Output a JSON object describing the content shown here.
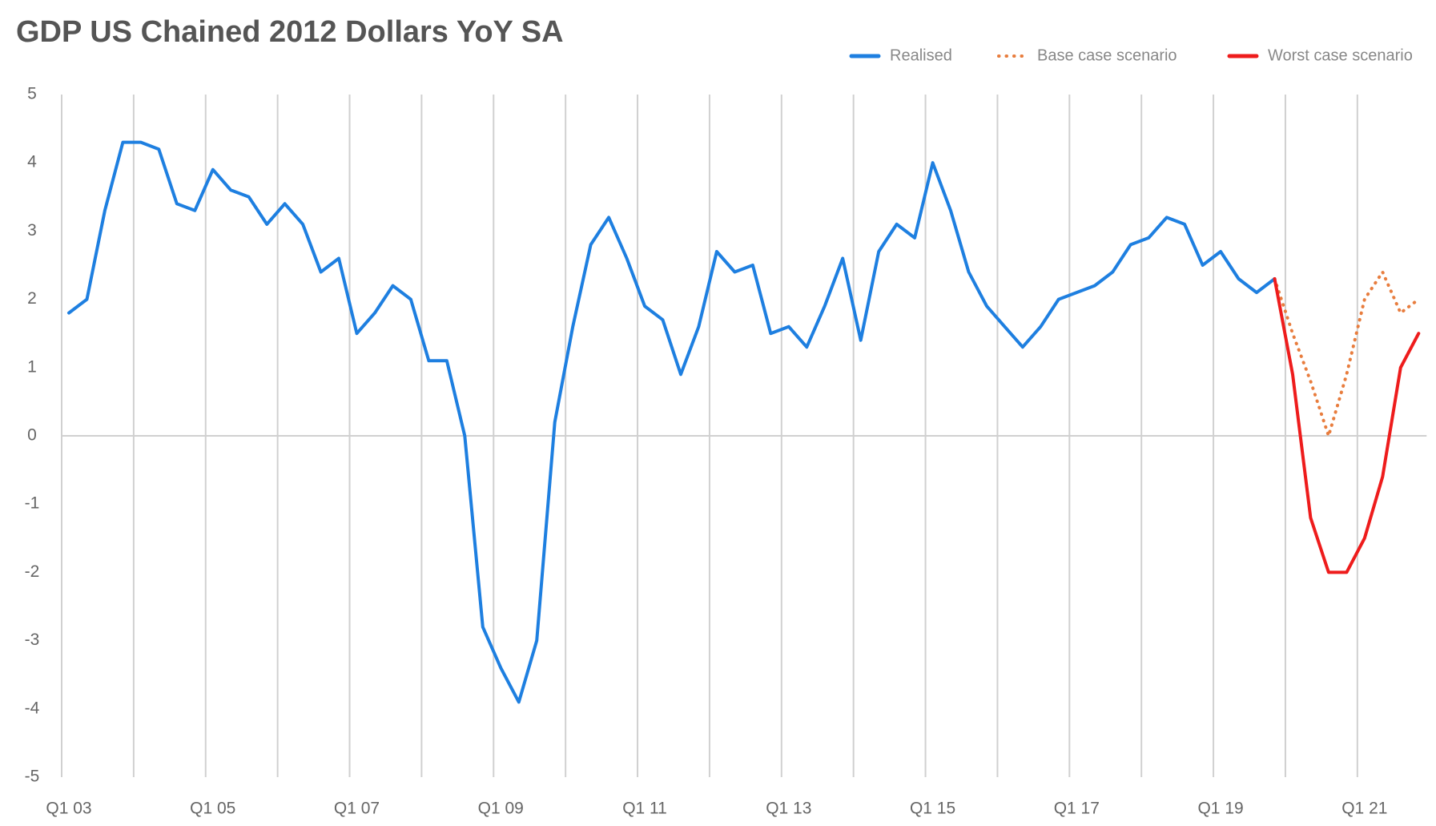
{
  "chart_data": {
    "type": "line",
    "title": "GDP US Chained 2012 Dollars YoY SA",
    "categories": [
      "Q1 03",
      null,
      null,
      null,
      null,
      null,
      null,
      null,
      "Q1 05",
      null,
      null,
      null,
      null,
      null,
      null,
      null,
      "Q1 07",
      null,
      null,
      null,
      null,
      null,
      null,
      null,
      "Q1 09",
      null,
      null,
      null,
      null,
      null,
      null,
      null,
      "Q1 11",
      null,
      null,
      null,
      null,
      null,
      null,
      null,
      "Q1 13",
      null,
      null,
      null,
      null,
      null,
      null,
      null,
      "Q1 15",
      null,
      null,
      null,
      null,
      null,
      null,
      null,
      "Q1 17",
      null,
      null,
      null,
      null,
      null,
      null,
      null,
      "Q1 19",
      null,
      null,
      null,
      null,
      null,
      null,
      null,
      "Q1 21",
      null,
      null,
      null
    ],
    "series": [
      {
        "name": "Realised",
        "color": "#1e7fe0",
        "dash": false,
        "values": [
          1.8,
          2.0,
          3.3,
          4.3,
          4.3,
          4.2,
          3.4,
          3.3,
          3.9,
          3.6,
          3.5,
          3.1,
          3.4,
          3.1,
          2.4,
          2.6,
          1.5,
          1.8,
          2.2,
          2.0,
          1.1,
          1.1,
          0.0,
          -2.8,
          -3.4,
          -3.9,
          -3.0,
          0.2,
          1.6,
          2.8,
          3.2,
          2.6,
          1.9,
          1.7,
          0.9,
          1.6,
          2.7,
          2.4,
          2.5,
          1.5,
          1.6,
          1.3,
          1.9,
          2.6,
          1.4,
          2.7,
          3.1,
          2.9,
          4.0,
          3.3,
          2.4,
          1.9,
          1.6,
          1.3,
          1.6,
          2.0,
          2.1,
          2.2,
          2.4,
          2.8,
          2.9,
          3.2,
          3.1,
          2.5,
          2.7,
          2.3,
          2.1,
          2.3,
          null,
          null,
          null,
          null,
          null,
          null,
          null,
          null
        ]
      },
      {
        "name": "Base case scenario",
        "color": "#e87d3e",
        "dash": true,
        "values": [
          null,
          null,
          null,
          null,
          null,
          null,
          null,
          null,
          null,
          null,
          null,
          null,
          null,
          null,
          null,
          null,
          null,
          null,
          null,
          null,
          null,
          null,
          null,
          null,
          null,
          null,
          null,
          null,
          null,
          null,
          null,
          null,
          null,
          null,
          null,
          null,
          null,
          null,
          null,
          null,
          null,
          null,
          null,
          null,
          null,
          null,
          null,
          null,
          null,
          null,
          null,
          null,
          null,
          null,
          null,
          null,
          null,
          null,
          null,
          null,
          null,
          null,
          null,
          null,
          null,
          null,
          null,
          2.3,
          1.5,
          0.8,
          0.0,
          0.9,
          2.0,
          2.4,
          1.8,
          2.0
        ]
      },
      {
        "name": "Worst case scenario",
        "color": "#ee1c1c",
        "dash": false,
        "values": [
          null,
          null,
          null,
          null,
          null,
          null,
          null,
          null,
          null,
          null,
          null,
          null,
          null,
          null,
          null,
          null,
          null,
          null,
          null,
          null,
          null,
          null,
          null,
          null,
          null,
          null,
          null,
          null,
          null,
          null,
          null,
          null,
          null,
          null,
          null,
          null,
          null,
          null,
          null,
          null,
          null,
          null,
          null,
          null,
          null,
          null,
          null,
          null,
          null,
          null,
          null,
          null,
          null,
          null,
          null,
          null,
          null,
          null,
          null,
          null,
          null,
          null,
          null,
          null,
          null,
          null,
          null,
          2.3,
          0.9,
          -1.2,
          -2.0,
          -2.0,
          -1.5,
          -0.6,
          1.0,
          1.5
        ]
      }
    ],
    "ylim": [
      -5,
      5
    ],
    "yticks": [
      -5,
      -4,
      -3,
      -2,
      -1,
      0,
      1,
      2,
      3,
      4,
      5
    ],
    "grid": true,
    "legend": "top-right"
  }
}
